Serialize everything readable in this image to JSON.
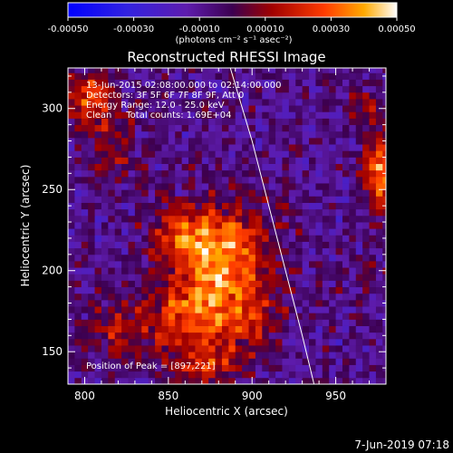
{
  "chart_data": {
    "type": "heatmap",
    "title": "Reconstructed RHESSI Image",
    "xlabel": "Heliocentric X (arcsec)",
    "ylabel": "Heliocentric Y (arcsec)",
    "xlim": [
      790,
      980
    ],
    "ylim": [
      130,
      325
    ],
    "x_ticks": [
      800,
      850,
      900,
      950
    ],
    "y_ticks": [
      150,
      200,
      250,
      300
    ],
    "colorbar": {
      "range": [
        -0.0005,
        0.0005
      ],
      "tick_values": [
        -0.0005,
        -0.0003,
        -0.0001,
        0.0001,
        0.0003,
        0.0005
      ],
      "tick_labels": [
        "-0.00050",
        "-0.00030",
        "-0.00010",
        "0.00010",
        "0.00030",
        "0.00050"
      ],
      "unit_label": "(photons cm⁻² s⁻¹ asec⁻²)"
    },
    "annotations": [
      "13-Jun-2015 02:08:00.000 to 02:14:00.000",
      "Detectors: 3F 5F 6F 7F 8F 9F, Att 0",
      "Energy Range: 12.0 - 25.0 keV",
      "Clean     Total counts: 1.69E+04"
    ],
    "peak_label": "Position of Peak = [897,221]",
    "footer": "7-Jun-2019 07:18",
    "limb_curve": {
      "x": [
        887,
        900,
        915,
        930,
        937
      ],
      "y": [
        325,
        280,
        220,
        160,
        130
      ]
    },
    "sources": [
      {
        "x": 884,
        "y": 205,
        "amp": 0.00045,
        "sx": 20,
        "sy": 24
      },
      {
        "x": 858,
        "y": 222,
        "amp": 0.00025,
        "sx": 13,
        "sy": 12
      },
      {
        "x": 862,
        "y": 172,
        "amp": 0.0003,
        "sx": 20,
        "sy": 14
      },
      {
        "x": 820,
        "y": 163,
        "amp": 0.00018,
        "sx": 14,
        "sy": 12
      },
      {
        "x": 902,
        "y": 165,
        "amp": 0.00015,
        "sx": 12,
        "sy": 10
      },
      {
        "x": 873,
        "y": 142,
        "amp": 0.00026,
        "sx": 16,
        "sy": 9
      },
      {
        "x": 803,
        "y": 305,
        "amp": 0.0003,
        "sx": 11,
        "sy": 14
      },
      {
        "x": 818,
        "y": 275,
        "amp": 0.00018,
        "sx": 9,
        "sy": 12
      },
      {
        "x": 977,
        "y": 262,
        "amp": 0.00045,
        "sx": 7,
        "sy": 16
      },
      {
        "x": 968,
        "y": 302,
        "amp": 0.00022,
        "sx": 6,
        "sy": 7
      },
      {
        "x": 970,
        "y": 195,
        "amp": 0.0001,
        "sx": 6,
        "sy": 10
      }
    ],
    "background_level": -8e-05
  }
}
